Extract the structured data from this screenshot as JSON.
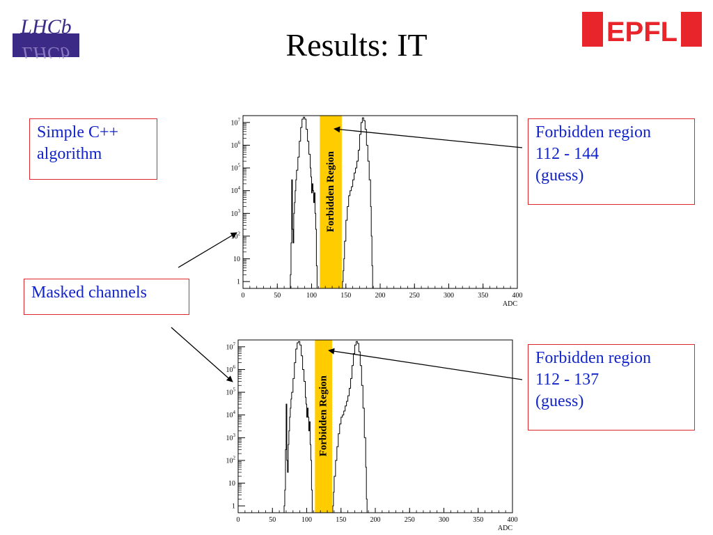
{
  "slide": {
    "title": "Results: IT",
    "logos": {
      "left_text": "LHCb",
      "right_text": "EPFL"
    }
  },
  "callouts": {
    "simple": [
      "Simple C++",
      "algorithm"
    ],
    "masked": "Masked channels",
    "forbidden_top": [
      "Forbidden region",
      "112 - 144",
      "(guess)"
    ],
    "forbidden_bottom": [
      "Forbidden region",
      "112 - 137",
      "(guess)"
    ]
  },
  "colors": {
    "band": "#ffcc00",
    "callout_border": "#e0242c",
    "callout_text": "#1224c8",
    "epfl_red": "#e8252b"
  },
  "chart_data": [
    {
      "type": "area",
      "xlabel": "ADC",
      "ylabel": "",
      "xlim": [
        0,
        400
      ],
      "ylim": [
        0.5,
        20000000
      ],
      "yscale": "log",
      "grid": false,
      "x_ticks": [
        0,
        50,
        100,
        150,
        200,
        250,
        300,
        350,
        400
      ],
      "x_tick_labels": [
        "0",
        "50",
        "100",
        "150",
        "200",
        "250",
        "300",
        "350",
        "400"
      ],
      "y_ticks": [
        1,
        10,
        100,
        1000,
        10000,
        100000,
        1000000,
        10000000
      ],
      "y_tick_labels": [
        [
          "1",
          ""
        ],
        [
          "10",
          ""
        ],
        [
          "10",
          "2"
        ],
        [
          "10",
          "3"
        ],
        [
          "10",
          "4"
        ],
        [
          "10",
          "5"
        ],
        [
          "10",
          "6"
        ],
        [
          "10",
          "7"
        ]
      ],
      "band": {
        "from": 112,
        "to": 144,
        "label": "Forbidden Region"
      },
      "series": [
        {
          "x": [
            68,
            69,
            70,
            71,
            72,
            73,
            74,
            75,
            76,
            77,
            78,
            80,
            82,
            84,
            86,
            88,
            90,
            92,
            94,
            96,
            98,
            99,
            100,
            101,
            102,
            103,
            104,
            105,
            106,
            107,
            108
          ],
          "y": [
            0.5,
            2,
            50,
            30000,
            200,
            50,
            1000,
            3000,
            10000,
            30000,
            80000,
            300000,
            1500000,
            6000000,
            14000000,
            17000000,
            14000000,
            5000000,
            1500000,
            400000,
            100000,
            40000,
            8000,
            20000,
            10000,
            3000,
            8000,
            1000,
            200,
            5,
            0.5
          ]
        },
        {
          "x": [
            144,
            145,
            146,
            147,
            148,
            150,
            152,
            154,
            156,
            158,
            160,
            162,
            164,
            166,
            168,
            170,
            172,
            174,
            176,
            178,
            180,
            182,
            184,
            186,
            187,
            188,
            189
          ],
          "y": [
            0.5,
            1,
            3,
            10,
            60,
            500,
            2000,
            6000,
            10000,
            15000,
            30000,
            60000,
            100000,
            200000,
            600000,
            3000000,
            10000000,
            16000000,
            12000000,
            5000000,
            1000000,
            200000,
            30000,
            2000,
            100,
            5,
            0.5
          ]
        }
      ]
    },
    {
      "type": "area",
      "xlabel": "ADC",
      "ylabel": "",
      "xlim": [
        0,
        400
      ],
      "ylim": [
        0.5,
        20000000
      ],
      "yscale": "log",
      "grid": false,
      "x_ticks": [
        0,
        50,
        100,
        150,
        200,
        250,
        300,
        350,
        400
      ],
      "x_tick_labels": [
        "0",
        "50",
        "100",
        "150",
        "200",
        "250",
        "300",
        "350",
        "400"
      ],
      "y_ticks": [
        1,
        10,
        100,
        1000,
        10000,
        100000,
        1000000,
        10000000
      ],
      "y_tick_labels": [
        [
          "1",
          ""
        ],
        [
          "10",
          ""
        ],
        [
          "10",
          "2"
        ],
        [
          "10",
          "3"
        ],
        [
          "10",
          "4"
        ],
        [
          "10",
          "5"
        ],
        [
          "10",
          "6"
        ],
        [
          "10",
          "7"
        ]
      ],
      "band": {
        "from": 112,
        "to": 137,
        "label": "Forbidden Region"
      },
      "series": [
        {
          "x": [
            66,
            67,
            68,
            69,
            70,
            71,
            72,
            73,
            74,
            75,
            76,
            77,
            78,
            80,
            82,
            84,
            86,
            88,
            90,
            92,
            94,
            96,
            98,
            99,
            100,
            101,
            102,
            103,
            104,
            105,
            106,
            107,
            108
          ],
          "y": [
            0.5,
            1,
            5,
            300,
            30000,
            100,
            30,
            500,
            2000,
            8000,
            20000,
            50000,
            100000,
            400000,
            2000000,
            8000000,
            15000000,
            17000000,
            12000000,
            4000000,
            1000000,
            300000,
            60000,
            30000,
            8000,
            20000,
            8000,
            2000,
            5000,
            500,
            100,
            5,
            0.5
          ]
        },
        {
          "x": [
            137,
            138,
            139,
            140,
            142,
            144,
            146,
            148,
            150,
            152,
            154,
            156,
            158,
            160,
            162,
            164,
            166,
            168,
            170,
            172,
            174,
            176,
            178,
            180,
            182,
            184,
            186,
            187,
            188
          ],
          "y": [
            0.5,
            1,
            4,
            20,
            100,
            400,
            1500,
            4000,
            8000,
            10000,
            15000,
            25000,
            40000,
            70000,
            150000,
            400000,
            1500000,
            5000000,
            12000000,
            17000000,
            14000000,
            6000000,
            1500000,
            200000,
            20000,
            1000,
            50,
            2,
            0.5
          ]
        }
      ]
    }
  ]
}
